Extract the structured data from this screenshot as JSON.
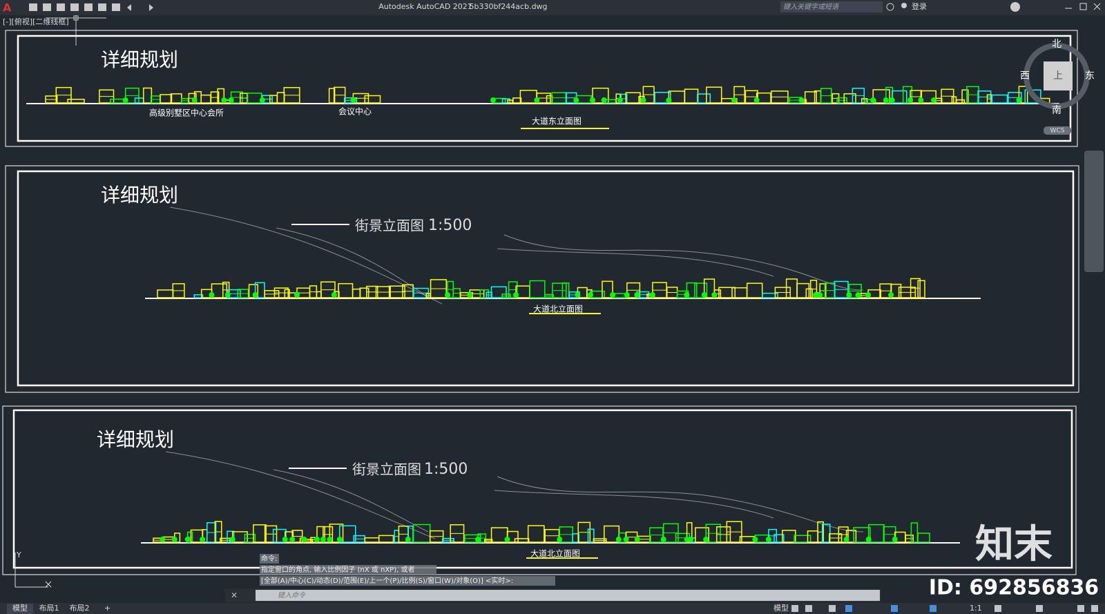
{
  "title_bar": {
    "app": "Autodesk AutoCAD 2021",
    "file": "5b330bf244acb.dwg",
    "search": "键入关键字或短语",
    "login": "登录"
  },
  "viewport_label": "[-][俯视][二维线框]",
  "viewcube": {
    "north": "北",
    "south": "南",
    "east": "东",
    "west": "西",
    "top": "上",
    "wcs": "WCS"
  },
  "panels": [
    {
      "title": "详细规划",
      "labels": [
        "高级别墅区中心会所",
        "会议中心"
      ],
      "caption": "大道东立面图"
    },
    {
      "title": "详细规划",
      "heading": "街景立面图",
      "scale": "1:500",
      "caption": "大道北立面图"
    },
    {
      "title": "详细规划",
      "heading": "街景立面图",
      "scale": "1:500",
      "caption": "大道北立面图"
    }
  ],
  "command": {
    "history": [
      "命令:",
      "指定窗口的角点, 输入比例因子 (nX 或 nXP), 或者",
      "[全部(A)/中心(C)/动态(D)/范围(E)/上一个(P)/比例(S)/窗口(W)/对象(O)] <实时>:"
    ],
    "input": "键入命令"
  },
  "tabs": [
    "模型",
    "布局1",
    "布局2"
  ],
  "status": {
    "mode": "模型",
    "scale": "1:1"
  },
  "watermark": {
    "brand": "知末",
    "id": "ID: 692856836"
  }
}
